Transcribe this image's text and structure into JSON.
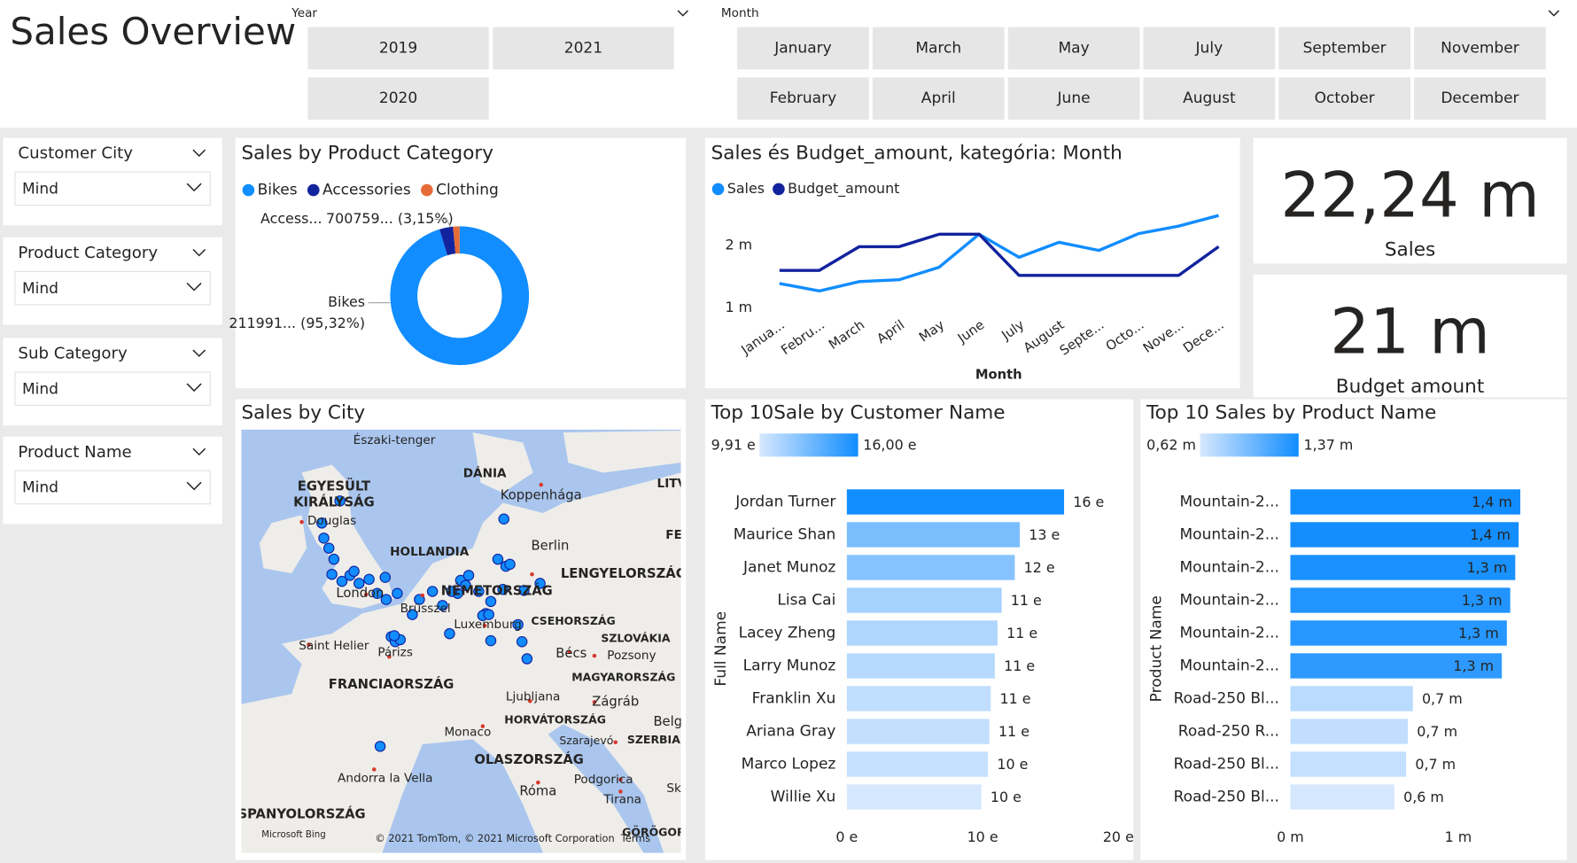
{
  "header": {
    "title": "Sales Overview"
  },
  "year_slicer": {
    "label": "Year",
    "options": [
      "2019",
      "2021",
      "2020"
    ]
  },
  "month_slicer": {
    "label": "Month",
    "options": [
      "January",
      "February",
      "March",
      "April",
      "May",
      "June",
      "July",
      "August",
      "September",
      "October",
      "November",
      "December"
    ]
  },
  "filters": [
    {
      "label": "Customer City",
      "value": "Mind"
    },
    {
      "label": "Product Category",
      "value": "Mind"
    },
    {
      "label": "Sub Category",
      "value": "Mind"
    },
    {
      "label": "Product Name",
      "value": "Mind"
    }
  ],
  "kpis": [
    {
      "value": "22,24 m",
      "label": "Sales"
    },
    {
      "value": "21 m",
      "label": "Budget amount"
    }
  ],
  "map": {
    "title": "Sales by City",
    "labels": [
      "Északi-tenger",
      "DÁNIA",
      "EGYESÜLT",
      "KIRÁLYSÁG",
      "Douglas",
      "Koppenhága",
      "LITV",
      "Berlin",
      "HOLLANDIA",
      "FE",
      "LENGYELORSZÁG",
      "London",
      "NÉMETORSZÁG",
      "Brüsszel",
      "Luxemburg",
      "CSEHORSZÁG",
      "SZLOVÁKIA",
      "Saint Helier",
      "Párizs",
      "Bécs",
      "Pozsony",
      "FRANCIAORSZÁG",
      "MAGYARORSZÁG",
      "Ljubljana",
      "Zágráb",
      "HORVÁTORSZÁG",
      "Belg",
      "Monaco",
      "Szarajevó",
      "SZERBIA",
      "OLASZORSZÁG",
      "Andorra la Vella",
      "Podgorica",
      "Róma",
      "Tirana",
      "Sk",
      "SPANYOLORSZÁG",
      "Microsoft Bing",
      "© 2021 TomTom, © 2021 Microsoft Corporation",
      "Terms",
      "GÖRÖGOR"
    ]
  },
  "chart_data": [
    {
      "type": "donut",
      "title": "Sales by Product Category",
      "categories": [
        "Bikes",
        "Accessories",
        "Clothing"
      ],
      "colors": [
        "#118DFF",
        "#12239E",
        "#E66C37"
      ],
      "values": [
        95.32,
        3.15,
        1.53
      ],
      "slice_names": [
        "Bikes",
        "Access...",
        null
      ],
      "value_labels": [
        "211991... (95,32%)",
        "700759... (3,15%)",
        null
      ]
    },
    {
      "type": "line",
      "title": "Sales és Budget_amount, kategória: Month",
      "x_label": "Month",
      "categories": [
        "Janua...",
        "Febru...",
        "March",
        "April",
        "May",
        "June",
        "July",
        "August",
        "Septe...",
        "Octo...",
        "Nove...",
        "Dece..."
      ],
      "series": [
        {
          "name": "Sales",
          "color": "#118DFF",
          "values": [
            1.39,
            1.27,
            1.42,
            1.45,
            1.65,
            2.18,
            1.81,
            2.05,
            1.92,
            2.19,
            2.31,
            2.48
          ]
        },
        {
          "name": "Budget_amount",
          "color": "#12239E",
          "values": [
            1.6,
            1.6,
            1.98,
            1.98,
            2.18,
            2.18,
            1.52,
            1.52,
            1.52,
            1.52,
            1.52,
            1.98
          ]
        }
      ],
      "ylim": [
        0.8,
        2.6
      ],
      "yticks": [
        {
          "value": 1,
          "label": "1 m"
        },
        {
          "value": 2,
          "label": "2 m"
        }
      ]
    },
    {
      "type": "hbar",
      "title": "Top 10Sale by Customer Name",
      "y_label": "Full Name",
      "color_legend": [
        "9,91 e",
        "16,00 e"
      ],
      "color_range": [
        "#D6E8FE",
        "#118DFF"
      ],
      "data_label_position": "outside",
      "categories": [
        "Jordan Turner",
        "Maurice Shan",
        "Janet Munoz",
        "Lisa Cai",
        "Lacey Zheng",
        "Larry Munoz",
        "Franklin Xu",
        "Ariana Gray",
        "Marco Lopez",
        "Willie Xu"
      ],
      "values": [
        16.0,
        12.74,
        12.37,
        11.4,
        11.1,
        10.9,
        10.6,
        10.5,
        10.4,
        9.91
      ],
      "value_labels": [
        "16 e",
        "13 e",
        "12 e",
        "11 e",
        "11 e",
        "11 e",
        "11 e",
        "11 e",
        "10 e",
        "10 e"
      ],
      "xlim": [
        0,
        20
      ],
      "xticks": [
        {
          "value": 0,
          "label": "0 e"
        },
        {
          "value": 10,
          "label": "10 e"
        },
        {
          "value": 20,
          "label": "20 e"
        }
      ]
    },
    {
      "type": "hbar",
      "title": "Top 10 Sales by Product Name",
      "y_label": "Product Name",
      "color_legend": [
        "0,62 m",
        "1,37 m"
      ],
      "color_range": [
        "#D6E8FE",
        "#118DFF"
      ],
      "data_label_position": "inside-if-dark",
      "categories": [
        "Mountain-2...",
        "Mountain-2...",
        "Mountain-2...",
        "Mountain-2...",
        "Mountain-2...",
        "Mountain-2...",
        "Road-250 Bl...",
        "Road-250 R...",
        "Road-250 Bl...",
        "Road-250 Bl..."
      ],
      "values": [
        1.37,
        1.36,
        1.34,
        1.31,
        1.29,
        1.26,
        0.73,
        0.7,
        0.69,
        0.62
      ],
      "value_labels": [
        "1,4 m",
        "1,4 m",
        "1,3 m",
        "1,3 m",
        "1,3 m",
        "1,3 m",
        "0,7 m",
        "0,7 m",
        "0,7 m",
        "0,6 m"
      ],
      "xlim": [
        0,
        1.6
      ],
      "xticks": [
        {
          "value": 0,
          "label": "0 m"
        },
        {
          "value": 1,
          "label": "1 m"
        }
      ]
    }
  ]
}
